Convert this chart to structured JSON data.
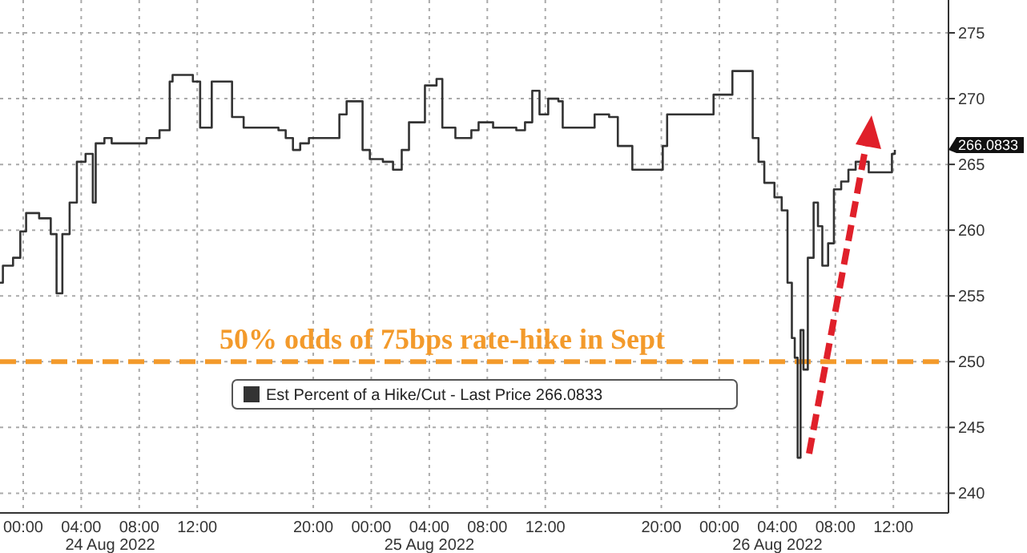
{
  "chart_data": {
    "type": "step",
    "x": [
      "2022-08-23T22:24",
      "2022-08-23T22:36",
      "2022-08-23T23:18",
      "2022-08-23T23:48",
      "2022-08-24T00:12",
      "2022-08-24T00:30",
      "2022-08-24T01:06",
      "2022-08-24T01:54",
      "2022-08-24T02:18",
      "2022-08-24T02:42",
      "2022-08-24T03:12",
      "2022-08-24T03:42",
      "2022-08-24T04:18",
      "2022-08-24T04:48",
      "2022-08-24T05:00",
      "2022-08-24T05:18",
      "2022-08-24T05:36",
      "2022-08-24T06:06",
      "2022-08-24T08:00",
      "2022-08-24T08:30",
      "2022-08-24T09:24",
      "2022-08-24T10:06",
      "2022-08-24T10:18",
      "2022-08-24T11:42",
      "2022-08-24T12:12",
      "2022-08-24T13:00",
      "2022-08-24T13:48",
      "2022-08-24T14:24",
      "2022-08-24T15:12",
      "2022-08-24T17:36",
      "2022-08-24T18:06",
      "2022-08-24T18:36",
      "2022-08-24T19:06",
      "2022-08-24T19:42",
      "2022-08-24T21:48",
      "2022-08-24T22:18",
      "2022-08-24T23:24",
      "2022-08-24T23:54",
      "2022-08-25T00:48",
      "2022-08-25T01:30",
      "2022-08-25T02:06",
      "2022-08-25T02:36",
      "2022-08-25T03:42",
      "2022-08-25T04:30",
      "2022-08-25T04:54",
      "2022-08-25T05:48",
      "2022-08-25T06:54",
      "2022-08-25T07:24",
      "2022-08-25T08:24",
      "2022-08-25T10:00",
      "2022-08-25T10:36",
      "2022-08-25T11:06",
      "2022-08-25T11:36",
      "2022-08-25T12:12",
      "2022-08-25T12:54",
      "2022-08-25T13:12",
      "2022-08-25T14:48",
      "2022-08-25T15:24",
      "2022-08-25T16:24",
      "2022-08-25T17:00",
      "2022-08-25T18:00",
      "2022-08-25T19:36",
      "2022-08-25T20:06",
      "2022-08-25T20:24",
      "2022-08-25T22:18",
      "2022-08-25T23:18",
      "2022-08-25T23:36",
      "2022-08-26T00:54",
      "2022-08-26T02:00",
      "2022-08-26T02:18",
      "2022-08-26T02:42",
      "2022-08-26T03:06",
      "2022-08-26T03:48",
      "2022-08-26T04:18",
      "2022-08-26T04:42",
      "2022-08-26T05:00",
      "2022-08-26T05:12",
      "2022-08-26T05:24",
      "2022-08-26T05:36",
      "2022-08-26T05:48",
      "2022-08-26T06:06",
      "2022-08-26T06:30",
      "2022-08-26T06:48",
      "2022-08-26T07:06",
      "2022-08-26T07:30",
      "2022-08-26T07:54",
      "2022-08-26T08:24",
      "2022-08-26T08:54",
      "2022-08-26T09:24",
      "2022-08-26T10:18",
      "2022-08-26T11:36",
      "2022-08-26T11:54",
      "2022-08-26T12:06"
    ],
    "series": [
      {
        "name": "Est Percent of a Hike/Cut - Last Price 266.0833",
        "color": "#333333",
        "values": [
          256.0,
          257.3,
          257.9,
          259.9,
          261.3,
          261.3,
          260.9,
          259.7,
          255.2,
          259.7,
          262.1,
          265.2,
          265.8,
          262.1,
          266.6,
          266.6,
          267.0,
          266.6,
          266.6,
          267.0,
          267.6,
          271.3,
          271.8,
          271.3,
          267.8,
          271.3,
          271.3,
          268.6,
          267.8,
          267.6,
          267.0,
          266.1,
          266.6,
          267.0,
          268.8,
          269.8,
          266.1,
          265.4,
          265.2,
          264.6,
          266.1,
          268.2,
          271.0,
          271.5,
          267.8,
          267.0,
          267.6,
          268.2,
          267.8,
          267.6,
          268.2,
          270.6,
          268.8,
          270.0,
          269.8,
          267.8,
          267.8,
          268.8,
          268.6,
          266.4,
          264.6,
          264.6,
          266.4,
          268.8,
          268.8,
          268.8,
          270.3,
          272.1,
          272.1,
          267.0,
          265.2,
          263.6,
          262.5,
          261.5,
          256.0,
          251.8,
          250.3,
          242.7,
          252.4,
          249.4,
          257.9,
          262.1,
          260.3,
          257.3,
          259.0,
          263.1,
          263.7,
          264.6,
          265.2,
          264.4,
          264.4,
          265.8,
          266.1
        ]
      }
    ],
    "xlim": [
      "2022-08-23T22:24",
      "2022-08-26T15:48"
    ],
    "xticks": [
      {
        "value": "2022-08-24T00:00",
        "label": "00:00"
      },
      {
        "value": "2022-08-24T04:00",
        "label": "04:00"
      },
      {
        "value": "2022-08-24T08:00",
        "label": "08:00"
      },
      {
        "value": "2022-08-24T12:00",
        "label": "12:00"
      },
      {
        "value": "2022-08-24T20:00",
        "label": "20:00"
      },
      {
        "value": "2022-08-25T00:00",
        "label": "00:00"
      },
      {
        "value": "2022-08-25T04:00",
        "label": "04:00"
      },
      {
        "value": "2022-08-25T08:00",
        "label": "08:00"
      },
      {
        "value": "2022-08-25T12:00",
        "label": "12:00"
      },
      {
        "value": "2022-08-25T20:00",
        "label": "20:00"
      },
      {
        "value": "2022-08-26T00:00",
        "label": "00:00"
      },
      {
        "value": "2022-08-26T04:00",
        "label": "04:00"
      },
      {
        "value": "2022-08-26T08:00",
        "label": "08:00"
      },
      {
        "value": "2022-08-26T12:00",
        "label": "12:00"
      }
    ],
    "ylim": [
      238.5,
      277.5
    ],
    "yticks": [
      240,
      245,
      250,
      255,
      260,
      265,
      270,
      275
    ],
    "grid": true,
    "legend": "bottom",
    "ref_lines": [
      {
        "axis": "y",
        "value": 250,
        "label": "50% odds of 75bps rate-hike in Sept",
        "color": "#f39a2b",
        "line_style": "dashed"
      }
    ],
    "annotations": [
      "24 Aug 2022",
      "25 Aug 2022",
      "26 Aug 2022",
      "266.0833"
    ]
  }
}
